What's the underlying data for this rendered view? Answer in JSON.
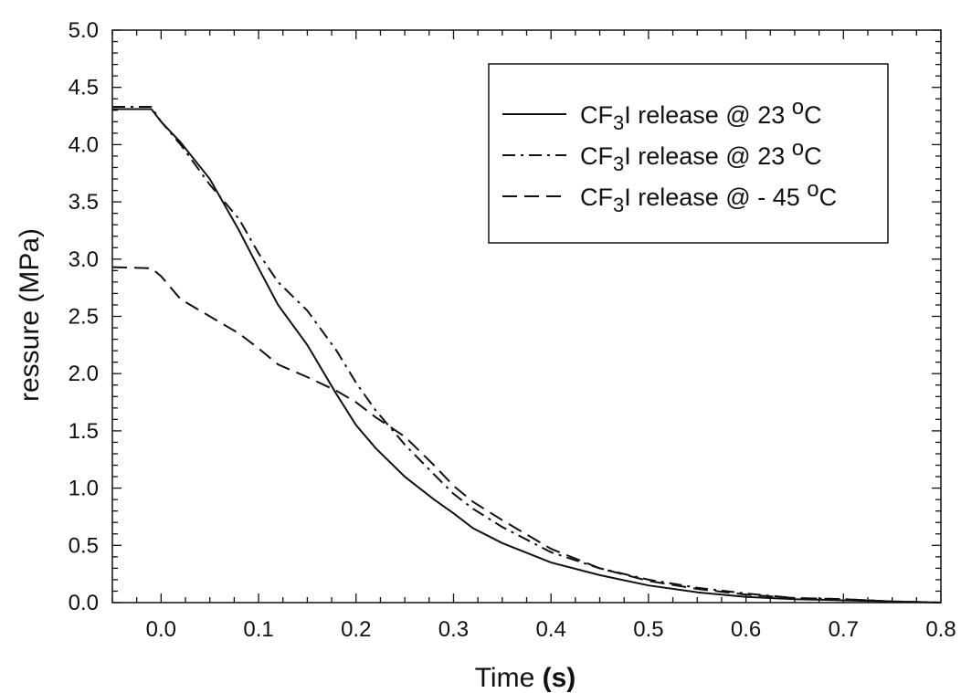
{
  "chart_data": {
    "type": "line",
    "title": "",
    "xlabel_parts": [
      "Time ",
      "(s)"
    ],
    "ylabel": "ressure (MPa)",
    "xlim": [
      -0.05,
      0.8
    ],
    "ylim": [
      0.0,
      5.0
    ],
    "x_ticks": [
      "0.0",
      "0.1",
      "0.2",
      "0.3",
      "0.4",
      "0.5",
      "0.6",
      "0.7",
      "0.8"
    ],
    "x_tick_values": [
      0.0,
      0.1,
      0.2,
      0.3,
      0.4,
      0.5,
      0.6,
      0.7,
      0.8
    ],
    "y_ticks": [
      "0.0",
      "0.5",
      "1.0",
      "1.5",
      "2.0",
      "2.5",
      "3.0",
      "3.5",
      "4.0",
      "4.5",
      "5.0"
    ],
    "y_tick_values": [
      0.0,
      0.5,
      1.0,
      1.5,
      2.0,
      2.5,
      3.0,
      3.5,
      4.0,
      4.5,
      5.0
    ],
    "grid": false,
    "legend_position": "top-right",
    "series": [
      {
        "name": "CF3I release @ 23 oC",
        "legend_parts": {
          "pre": "CF",
          "sub": "3",
          "mid": "I release @ 23 ",
          "sup": "o",
          "post": "C"
        },
        "dash": "solid",
        "x": [
          -0.05,
          -0.01,
          0.0,
          0.02,
          0.05,
          0.08,
          0.1,
          0.12,
          0.15,
          0.18,
          0.2,
          0.22,
          0.25,
          0.28,
          0.3,
          0.32,
          0.35,
          0.4,
          0.45,
          0.5,
          0.55,
          0.6,
          0.65,
          0.7,
          0.75,
          0.8
        ],
        "y": [
          4.31,
          4.31,
          4.2,
          4.02,
          3.7,
          3.25,
          2.92,
          2.6,
          2.25,
          1.82,
          1.55,
          1.35,
          1.1,
          0.9,
          0.78,
          0.65,
          0.52,
          0.35,
          0.24,
          0.15,
          0.09,
          0.05,
          0.03,
          0.02,
          0.01,
          0.0
        ]
      },
      {
        "name": "CF3I release @ 23 oC",
        "legend_parts": {
          "pre": "CF",
          "sub": "3",
          "mid": "I release @ 23 ",
          "sup": "o",
          "post": "C"
        },
        "dash": "dashdot",
        "x": [
          -0.05,
          -0.01,
          0.0,
          0.02,
          0.05,
          0.08,
          0.1,
          0.12,
          0.15,
          0.18,
          0.2,
          0.22,
          0.25,
          0.28,
          0.3,
          0.32,
          0.35,
          0.4,
          0.45,
          0.5,
          0.55,
          0.6,
          0.65,
          0.7,
          0.75,
          0.8
        ],
        "y": [
          4.33,
          4.33,
          4.2,
          4.0,
          3.65,
          3.35,
          3.05,
          2.8,
          2.55,
          2.2,
          1.92,
          1.68,
          1.38,
          1.12,
          0.95,
          0.82,
          0.66,
          0.44,
          0.3,
          0.2,
          0.13,
          0.08,
          0.04,
          0.03,
          0.01,
          0.0
        ]
      },
      {
        "name": "CF3I release @ - 45 oC",
        "legend_parts": {
          "pre": "CF",
          "sub": "3",
          "mid": "I release @ - 45 ",
          "sup": "o",
          "post": "C"
        },
        "dash": "dash",
        "x": [
          -0.05,
          -0.01,
          0.0,
          0.02,
          0.05,
          0.08,
          0.1,
          0.12,
          0.15,
          0.18,
          0.2,
          0.22,
          0.25,
          0.28,
          0.3,
          0.32,
          0.35,
          0.4,
          0.45,
          0.5,
          0.55,
          0.6,
          0.65,
          0.7,
          0.75,
          0.8
        ],
        "y": [
          2.93,
          2.92,
          2.85,
          2.65,
          2.5,
          2.35,
          2.22,
          2.08,
          1.97,
          1.85,
          1.75,
          1.62,
          1.45,
          1.2,
          1.02,
          0.88,
          0.72,
          0.47,
          0.3,
          0.19,
          0.12,
          0.07,
          0.04,
          0.03,
          0.01,
          0.0
        ]
      }
    ]
  }
}
